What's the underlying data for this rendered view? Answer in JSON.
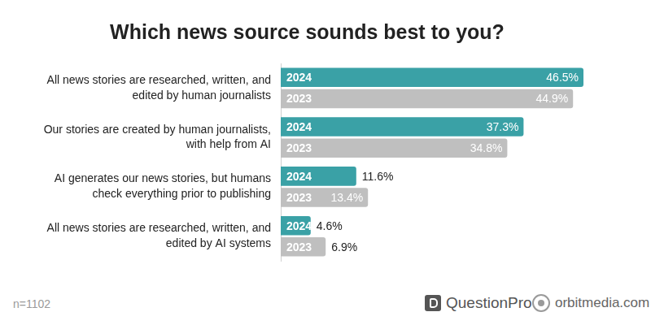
{
  "chart_data": {
    "type": "bar",
    "orientation": "horizontal",
    "title": "Which news source sounds best to you?",
    "categories": [
      "All news stories are researched, written, and edited by human journalists",
      "Our stories are created by human journalists, with help from AI",
      "AI generates our news stories, but humans check everything prior to publishing",
      "All news stories are researched, written, and edited by AI systems"
    ],
    "series": [
      {
        "name": "2024",
        "color": "#3aa1a6",
        "values": [
          46.5,
          37.3,
          11.6,
          4.6
        ],
        "value_labels": [
          "46.5%",
          "37.3%",
          "11.6%",
          "4.6%"
        ]
      },
      {
        "name": "2023",
        "color": "#bfbfbf",
        "values": [
          44.9,
          34.8,
          13.4,
          6.9
        ],
        "value_labels": [
          "44.9%",
          "34.8%",
          "13.4%",
          "6.9%"
        ]
      }
    ],
    "data_labels": true,
    "grid": false,
    "tick_labels": "y",
    "annotations": [
      "n=1102",
      "QuestionPro",
      "orbitmedia.com"
    ]
  }
}
